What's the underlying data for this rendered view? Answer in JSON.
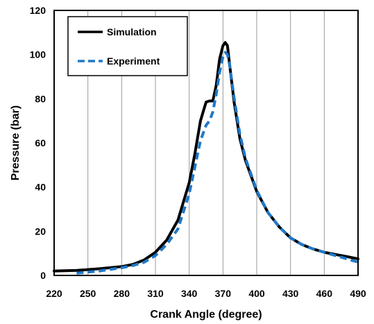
{
  "chart_data": {
    "type": "line",
    "title": "",
    "xlabel": "Crank Angle (degree)",
    "ylabel": "Pressure (bar)",
    "xlim": [
      220,
      490
    ],
    "ylim": [
      0,
      120
    ],
    "xticks": [
      220,
      250,
      280,
      310,
      340,
      370,
      400,
      430,
      460,
      490
    ],
    "yticks": [
      0,
      20,
      40,
      60,
      80,
      100,
      120
    ],
    "grid": "vertical",
    "legend_position": "top-left",
    "series": [
      {
        "name": "Simulation",
        "color": "#000000",
        "style": "solid",
        "x": [
          220,
          240,
          260,
          280,
          290,
          300,
          310,
          320,
          330,
          340,
          345,
          350,
          355,
          358,
          361,
          364,
          367,
          370,
          372,
          374,
          376,
          380,
          385,
          390,
          400,
          410,
          420,
          430,
          440,
          450,
          460,
          470,
          480,
          490
        ],
        "y": [
          2,
          2.3,
          3,
          4,
          5,
          7,
          10.5,
          16,
          25,
          42,
          55,
          70,
          78.5,
          79,
          79,
          86,
          98,
          104,
          105.5,
          104,
          95,
          78,
          62,
          52,
          38,
          28.5,
          22,
          17,
          14,
          12,
          10.5,
          9.5,
          8.5,
          7.5
        ]
      },
      {
        "name": "Experiment",
        "color": "#1f78c8",
        "style": "dashed",
        "x": [
          240,
          250,
          260,
          280,
          290,
          300,
          310,
          320,
          330,
          340,
          345,
          350,
          355,
          358,
          361,
          364,
          367,
          370,
          372,
          374,
          376,
          380,
          385,
          390,
          400,
          410,
          420,
          430,
          440,
          450,
          460,
          470,
          480,
          490
        ],
        "y": [
          1,
          1.5,
          2,
          3.5,
          4.5,
          6,
          9,
          14,
          21,
          37,
          49,
          61,
          68,
          70,
          74,
          82,
          92,
          99,
          101,
          100,
          95,
          80,
          64,
          53,
          38.5,
          28.5,
          22,
          17,
          14,
          12,
          10.5,
          9,
          7.5,
          6
        ]
      }
    ]
  }
}
